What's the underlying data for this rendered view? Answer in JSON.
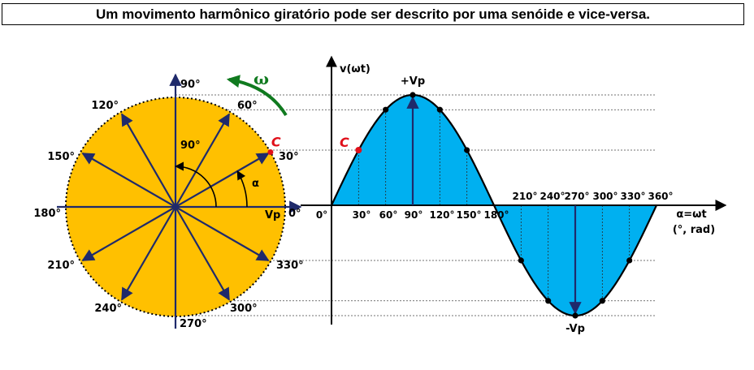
{
  "title": "Um movimento harmônico giratório pode ser descrito por uma senóide e vice-versa.",
  "colors": {
    "disk": "#ffc000",
    "wave_fill": "#00b0f0",
    "arrow": "#1f2a6b",
    "omega": "#107a1f",
    "point_c": "#e0101a"
  },
  "circle": {
    "angles": [
      0,
      30,
      60,
      90,
      120,
      150,
      180,
      210,
      240,
      270,
      300,
      330
    ],
    "angle_labels": [
      "0°",
      "30°",
      "60°",
      "90°",
      "120°",
      "150°",
      "180°",
      "210°",
      "240°",
      "270°",
      "300°",
      "330°"
    ],
    "inner_90_label": "90°",
    "alpha_label": "α",
    "omega_label": "ω",
    "point_label": "C",
    "vp_label": "Vp",
    "point_angle": 30
  },
  "chart_data": {
    "type": "line",
    "title": "",
    "function": "v = Vp·sin(ωt)",
    "ylabel": "v(ωt)",
    "xlabel": "α=ωt",
    "xunit_label": "(°, rad)",
    "x": [
      0,
      30,
      60,
      90,
      120,
      150,
      180,
      210,
      240,
      270,
      300,
      330,
      360
    ],
    "x_labels": [
      "0°",
      "30°",
      "60°",
      "90°",
      "120°",
      "150°",
      "180°",
      "210°",
      "240°",
      "270°",
      "300°",
      "330°",
      "360°"
    ],
    "y": [
      0,
      0.5,
      0.866,
      1,
      0.866,
      0.5,
      0,
      -0.5,
      -0.866,
      -1,
      -0.866,
      -0.5,
      0
    ],
    "peak_label": "+Vp",
    "trough_label": "-Vp",
    "point_label": "C",
    "point_x": 30,
    "ylim": [
      -1,
      1
    ],
    "xlim": [
      0,
      360
    ]
  }
}
